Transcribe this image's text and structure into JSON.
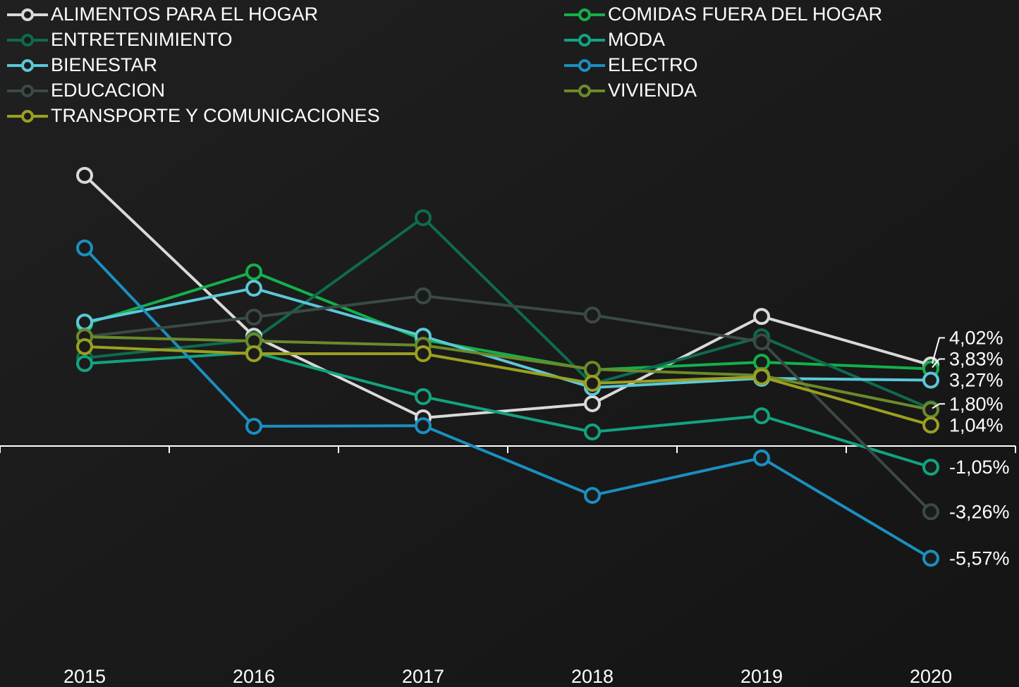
{
  "chart_data": {
    "type": "line",
    "categories": [
      "2015",
      "2016",
      "2017",
      "2018",
      "2019",
      "2020"
    ],
    "ylim": [
      -7,
      14
    ],
    "series": [
      {
        "name": "ALIMENTOS PARA EL HOGAR",
        "color": "#d9d9d9",
        "values": [
          13.43,
          5.45,
          1.4,
          2.1,
          6.43,
          4.02
        ],
        "value_labels": [
          null,
          null,
          null,
          null,
          null,
          "4,02%"
        ]
      },
      {
        "name": "COMIDAS FUERA DEL HOGAR",
        "color": "#13b04b",
        "values": [
          6.05,
          8.64,
          5.28,
          3.78,
          4.16,
          3.83
        ],
        "value_labels": [
          null,
          null,
          null,
          null,
          null,
          "3,83%"
        ]
      },
      {
        "name": "ENTRETENIMIENTO",
        "color": "#0e6b4e",
        "values": [
          4.37,
          5.28,
          11.33,
          3.08,
          5.42,
          1.85
        ]
      },
      {
        "name": "MODA",
        "color": "#11a37f",
        "values": [
          4.09,
          4.65,
          2.45,
          0.7,
          1.5,
          -1.05
        ],
        "value_labels": [
          null,
          null,
          null,
          null,
          null,
          "-1,05%"
        ]
      },
      {
        "name": "BIENESTAR",
        "color": "#5bc8d8",
        "values": [
          6.15,
          7.83,
          5.45,
          2.9,
          3.36,
          3.27
        ],
        "value_labels": [
          null,
          null,
          null,
          null,
          null,
          "3,27%"
        ]
      },
      {
        "name": "ELECTRO",
        "color": "#1a8fbf",
        "values": [
          9.83,
          0.98,
          1.01,
          -2.45,
          -0.59,
          -5.57
        ],
        "value_labels": [
          null,
          null,
          null,
          null,
          null,
          "-5,57%"
        ]
      },
      {
        "name": "EDUCACION",
        "color": "#3a4a44",
        "values": [
          5.42,
          6.4,
          7.45,
          6.5,
          5.17,
          -3.26
        ],
        "value_labels": [
          null,
          null,
          null,
          null,
          null,
          "-3,26%"
        ]
      },
      {
        "name": "VIVIENDA",
        "color": "#6b8a2a",
        "values": [
          5.42,
          5.21,
          5.0,
          3.81,
          3.5,
          1.8
        ],
        "value_labels": [
          null,
          null,
          null,
          null,
          null,
          "1,80%"
        ]
      },
      {
        "name": "TRANSPORTE Y COMUNICACIONES",
        "color": "#9aa020",
        "values": [
          4.93,
          4.58,
          4.58,
          3.11,
          3.43,
          1.04
        ],
        "value_labels": [
          null,
          null,
          null,
          null,
          null,
          "1,04%"
        ]
      }
    ]
  }
}
